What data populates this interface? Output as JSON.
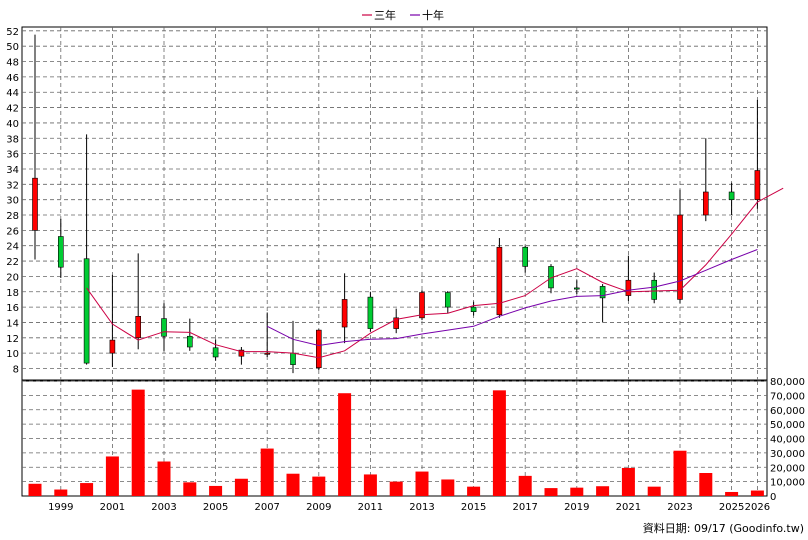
{
  "chart_data": {
    "type": "candlestick+bar",
    "years": [
      "1998",
      "1999",
      "2000",
      "2001",
      "2002",
      "2003",
      "2004",
      "2005",
      "2006",
      "2007",
      "2008",
      "2009",
      "2010",
      "2011",
      "2012",
      "2013",
      "2014",
      "2015",
      "2016",
      "2017",
      "2018",
      "2019",
      "2020",
      "2021",
      "2022",
      "2023",
      "2024",
      "2025",
      "2026"
    ],
    "x_tick_labels": [
      "1999",
      "2001",
      "2003",
      "2005",
      "2007",
      "2009",
      "2011",
      "2013",
      "2015",
      "2017",
      "2019",
      "2021",
      "2023",
      "2025",
      "2026"
    ],
    "x_tick_years": [
      1999,
      2001,
      2003,
      2005,
      2007,
      2009,
      2011,
      2013,
      2015,
      2017,
      2019,
      2021,
      2023,
      2025,
      2026
    ],
    "price_axis": {
      "ylim": [
        6.5,
        52.5
      ],
      "ticks": [
        8,
        10,
        12,
        14,
        16,
        18,
        20,
        22,
        24,
        26,
        28,
        30,
        32,
        34,
        36,
        38,
        40,
        42,
        44,
        46,
        48,
        50,
        52
      ]
    },
    "volume_axis": {
      "ylim": [
        0,
        80000
      ],
      "ticks": [
        0,
        10000,
        20000,
        30000,
        40000,
        50000,
        60000,
        70000,
        80000
      ],
      "tick_labels": [
        "0",
        "10,000",
        "20,000",
        "30,000",
        "40,000",
        "50,000",
        "60,000",
        "70,000",
        "80,000"
      ]
    },
    "candles": [
      {
        "year": "1998",
        "open": 26.0,
        "high": 51.5,
        "low": 22.2,
        "close": 32.8
      },
      {
        "year": "1999",
        "open": 25.2,
        "high": 27.5,
        "low": 19.8,
        "close": 21.2
      },
      {
        "year": "2000",
        "open": 22.3,
        "high": 38.5,
        "low": 8.5,
        "close": 8.7
      },
      {
        "year": "2001",
        "open": 10.0,
        "high": 20.2,
        "low": 8.2,
        "close": 11.7
      },
      {
        "year": "2002",
        "open": 12.0,
        "high": 23.0,
        "low": 10.5,
        "close": 14.8
      },
      {
        "year": "2003",
        "open": 14.5,
        "high": 16.5,
        "low": 10.3,
        "close": 12.2
      },
      {
        "year": "2004",
        "open": 12.2,
        "high": 14.5,
        "low": 10.3,
        "close": 10.8
      },
      {
        "year": "2005",
        "open": 10.7,
        "high": 11.8,
        "low": 9.0,
        "close": 9.5
      },
      {
        "year": "2006",
        "open": 9.6,
        "high": 10.8,
        "low": 8.5,
        "close": 10.4
      },
      {
        "year": "2007",
        "open": 10.0,
        "high": 15.3,
        "low": 9.5,
        "close": 10.0
      },
      {
        "year": "2008",
        "open": 10.0,
        "high": 14.2,
        "low": 7.4,
        "close": 8.5
      },
      {
        "year": "2009",
        "open": 8.1,
        "high": 13.1,
        "low": 7.8,
        "close": 13.0
      },
      {
        "year": "2010",
        "open": 13.4,
        "high": 20.4,
        "low": 11.3,
        "close": 17.0
      },
      {
        "year": "2011",
        "open": 17.3,
        "high": 18.0,
        "low": 12.8,
        "close": 13.2
      },
      {
        "year": "2012",
        "open": 13.2,
        "high": 15.8,
        "low": 12.6,
        "close": 14.6
      },
      {
        "year": "2013",
        "open": 14.6,
        "high": 18.2,
        "low": 14.3,
        "close": 17.9
      },
      {
        "year": "2014",
        "open": 17.9,
        "high": 18.1,
        "low": 15.2,
        "close": 16.0
      },
      {
        "year": "2015",
        "open": 16.0,
        "high": 16.7,
        "low": 14.9,
        "close": 15.4
      },
      {
        "year": "2016",
        "open": 15.0,
        "high": 25.0,
        "low": 14.6,
        "close": 23.8
      },
      {
        "year": "2017",
        "open": 23.8,
        "high": 24.0,
        "low": 20.5,
        "close": 21.3
      },
      {
        "year": "2018",
        "open": 21.3,
        "high": 21.6,
        "low": 17.8,
        "close": 18.5
      },
      {
        "year": "2019",
        "open": 18.5,
        "high": 19.5,
        "low": 17.7,
        "close": 18.4
      },
      {
        "year": "2020",
        "open": 18.7,
        "high": 19.0,
        "low": 14.0,
        "close": 17.2
      },
      {
        "year": "2021",
        "open": 17.5,
        "high": 22.7,
        "low": 16.8,
        "close": 19.5
      },
      {
        "year": "2022",
        "open": 19.5,
        "high": 20.5,
        "low": 16.5,
        "close": 17.0
      },
      {
        "year": "2023",
        "open": 17.0,
        "high": 31.3,
        "low": 16.5,
        "close": 28.0
      },
      {
        "year": "2024",
        "open": 28.0,
        "high": 38.0,
        "low": 27.2,
        "close": 31.0
      },
      {
        "year": "2025",
        "open": 31.0,
        "high": 32.2,
        "low": 28.0,
        "close": 30.0
      },
      {
        "year": "2026",
        "open": 30.0,
        "high": 43.0,
        "low": 28.8,
        "close": 33.8
      }
    ],
    "series": [
      {
        "name": "三年",
        "color": "#cc0044",
        "start_index": 2,
        "values": [
          18.5,
          13.8,
          11.7,
          12.8,
          12.7,
          11.1,
          10.2,
          10.2,
          10.0,
          9.4,
          10.3,
          12.6,
          14.4,
          15.0,
          15.2,
          16.2,
          16.5,
          17.5,
          19.8,
          21.0,
          19.2,
          18.0,
          18.1,
          18.2,
          21.5,
          25.5,
          29.7,
          31.5
        ]
      },
      {
        "name": "十年",
        "color": "#7700aa",
        "start_index": 9,
        "values": [
          13.5,
          11.8,
          11.0,
          11.5,
          11.8,
          11.9,
          12.5,
          13.0,
          13.5,
          14.8,
          15.9,
          16.8,
          17.4,
          17.5,
          18.2,
          18.6,
          19.4,
          20.8,
          22.2,
          23.5
        ]
      }
    ],
    "volumes": [
      8500,
      4500,
      9000,
      27500,
      74000,
      24000,
      9500,
      7000,
      12000,
      33000,
      15500,
      13500,
      71500,
      15000,
      10000,
      17000,
      11500,
      6500,
      73500,
      14000,
      5500,
      5800,
      6800,
      19500,
      6500,
      31500,
      16000,
      2800,
      3800
    ],
    "colors": {
      "up": "#ff0000",
      "down": "#00cc33",
      "volume": "#ff0000",
      "grid": "#666666"
    },
    "legend": [
      "三年",
      "十年"
    ],
    "footer": "資料日期: 09/17  (Goodinfo.tw)"
  }
}
